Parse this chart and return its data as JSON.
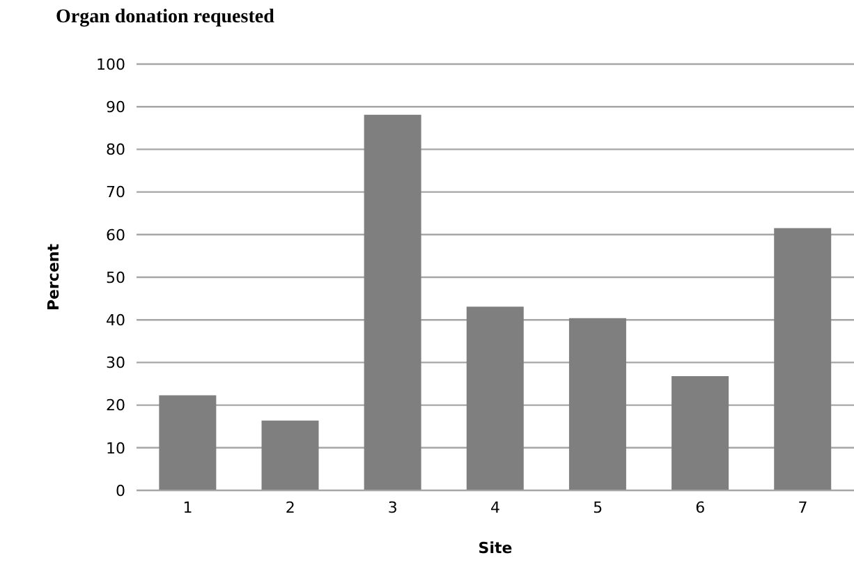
{
  "chart_data": {
    "type": "bar",
    "title": "Organ donation requested",
    "xlabel": "Site",
    "ylabel": "Percent",
    "categories": [
      "1",
      "2",
      "3",
      "4",
      "5",
      "6",
      "7"
    ],
    "values": [
      22.3,
      16.4,
      88.1,
      43.1,
      40.4,
      26.8,
      61.5
    ],
    "color": "#7f7f7f",
    "ylim": [
      0,
      100
    ],
    "yticks": [
      0,
      10,
      20,
      30,
      40,
      50,
      60,
      70,
      80,
      90,
      100
    ],
    "grid": "y",
    "legend": false
  }
}
